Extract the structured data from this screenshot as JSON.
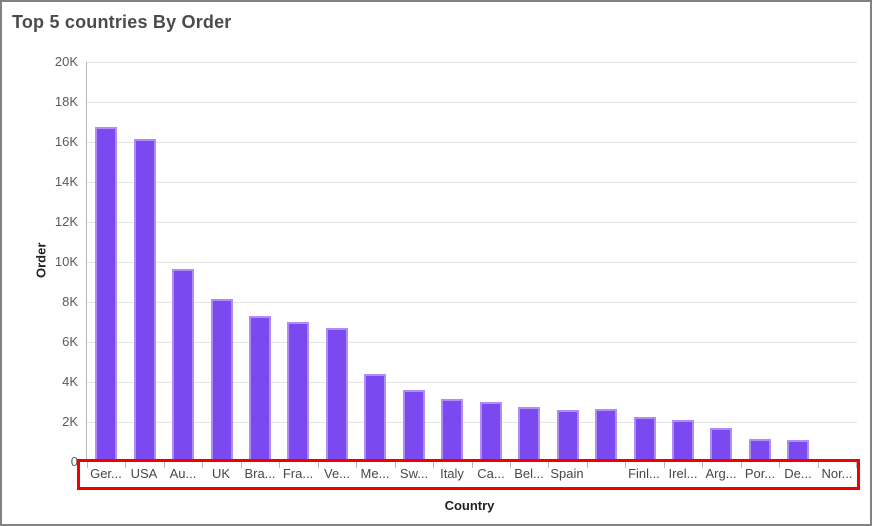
{
  "window": {
    "title_text": "Top 5 countries By Order"
  },
  "chart_data": {
    "type": "bar",
    "title": "Top 5 countries By Order",
    "xlabel": "Country",
    "ylabel": "Order",
    "categories": [
      "Ger...",
      "USA",
      "Au...",
      "UK",
      "Bra...",
      "Fra...",
      "Ve...",
      "Me...",
      "Sw...",
      "Italy",
      "Ca...",
      "Bel...",
      "Spain",
      "",
      "Finl...",
      "Irel...",
      "Arg...",
      "Por...",
      "De...",
      "Nor..."
    ],
    "values": [
      16750,
      16150,
      9650,
      8150,
      7300,
      7000,
      6700,
      4400,
      3600,
      3150,
      3000,
      2750,
      2600,
      2650,
      2250,
      2100,
      1700,
      1150,
      1100,
      100
    ],
    "ylim": [
      0,
      20000
    ],
    "y_tick_interval": 2000,
    "y_tick_labels": [
      "0",
      "2K",
      "4K",
      "6K",
      "8K",
      "10K",
      "12K",
      "14K",
      "16K",
      "18K",
      "20K"
    ],
    "grid": "horizontal",
    "legend": "none",
    "bar_color": "#7c48f0",
    "bar_edge_color": "#ae8ef5",
    "title_color": "#4b4b4b",
    "axis_label_color": "#5c5c5c"
  },
  "annotation": {
    "type": "rectangle-highlight",
    "target": "x-axis-labels",
    "color": "#f10000"
  }
}
